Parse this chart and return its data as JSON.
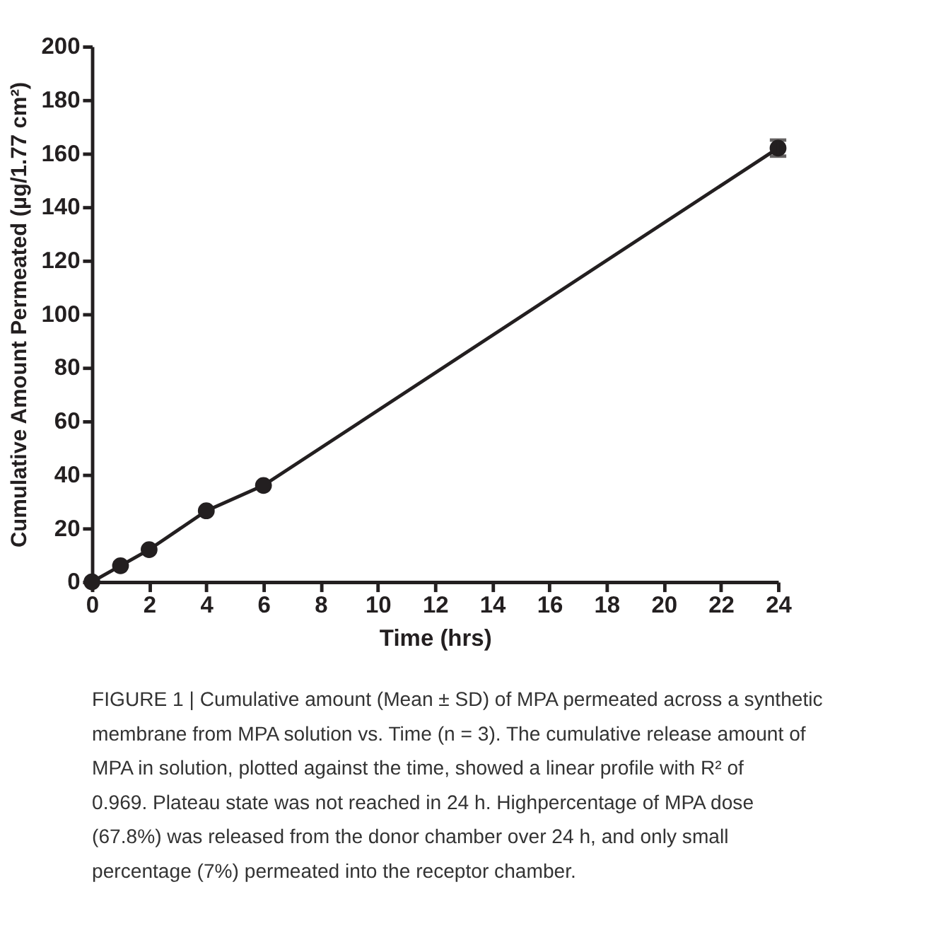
{
  "chart_data": {
    "type": "line",
    "xlabel": "Time (hrs)",
    "ylabel": "Cumulative Amount Permeated (µg/1.77 cm²)",
    "x": [
      0,
      1,
      2,
      4,
      6,
      24
    ],
    "series": [
      {
        "color": "#231f20",
        "values": [
          0,
          6,
          12,
          26.5,
          36,
          162
        ],
        "errors": [
          null,
          null,
          null,
          null,
          null,
          3
        ]
      }
    ],
    "xlim": [
      0,
      24
    ],
    "xticks": [
      0,
      2,
      4,
      6,
      8,
      10,
      12,
      14,
      16,
      18,
      20,
      22,
      24
    ],
    "ylim": [
      0,
      200
    ],
    "yticks": [
      0,
      20,
      40,
      60,
      80,
      100,
      120,
      140,
      160,
      180,
      200
    ],
    "grid": false,
    "marker": "circle",
    "line_style": "solid",
    "annotations": [
      "FIGURE 1 | Cumulative amount (Mean ± SD) of MPA permeated across a synthetic membrane from MPA solution vs. Time (n = 3). The cumulative release amount of MPA in solution, plotted against the time, showed a linear profile with R² of 0.969. Plateau state was not reached in 24 h. Highpercentage of MPA dose (67.8%) was released from the donor chamber over 24 h, and only small percentage (7%) permeated into the receptor chamber."
    ]
  }
}
